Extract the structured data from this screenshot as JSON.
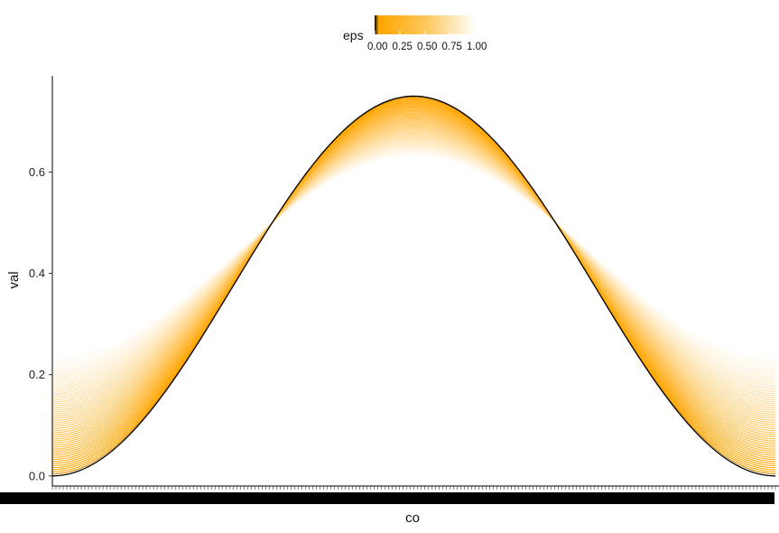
{
  "chart_data": {
    "type": "line",
    "xlabel": "co",
    "ylabel": "val",
    "ylim": [
      -0.02,
      0.79
    ],
    "y_ticks": [
      0.0,
      0.2,
      0.4,
      0.6
    ],
    "y_tick_labels": [
      "0.0",
      "0.2",
      "0.4",
      "0.6"
    ],
    "x_tick_labels": "dense, illegible",
    "legend": {
      "title": "eps",
      "placement": "top",
      "ticks": [
        0.0,
        0.25,
        0.5,
        0.75,
        1.0
      ],
      "tick_labels": [
        "0.00",
        "0.25",
        "0.50",
        "0.75",
        "1.00"
      ],
      "colors": {
        "low": "#000000",
        "mid": "#ffa500",
        "high": "#ffffff"
      }
    },
    "series_model": {
      "description_of_curves": "family of curves val(co) = 0.375*(1 - cos(2*pi*co)) blended toward 0.5 level; amplitude shrinks as eps grows",
      "eps_range": [
        0.0,
        1.0
      ],
      "n_curves": 60,
      "peak_at_eps0": 0.75,
      "trough_at_eps0": 0.0,
      "peak_at_eps1": 0.63,
      "trough_at_eps1": 0.24,
      "crossing_value": 0.5
    }
  }
}
